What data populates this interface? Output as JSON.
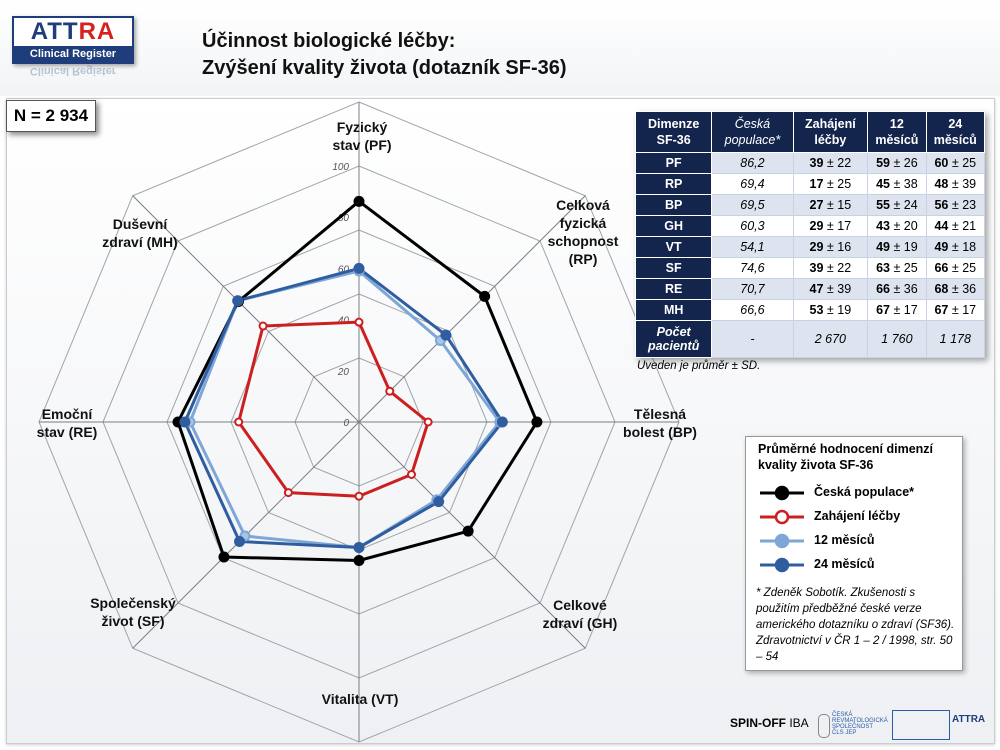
{
  "logo": {
    "part1": "ATT",
    "part2": "RA",
    "subtitle": "Clinical Register"
  },
  "title": {
    "line1": "Účinnost biologické léčby:",
    "line2": "Zvýšení kvality života (dotazník SF-36)"
  },
  "n_badge": "N = 2 934",
  "axis_labels": {
    "pf": [
      "Fyzický",
      "stav (PF)"
    ],
    "rp": [
      "Celková",
      "fyzická",
      "schopnost",
      "(RP)"
    ],
    "bp": [
      "Tělesná",
      "bolest (BP)"
    ],
    "gh": [
      "Celkové",
      "zdraví (GH)"
    ],
    "vt": [
      "Vitalita (VT)"
    ],
    "sf": [
      "Společenský",
      "život (SF)"
    ],
    "re": [
      "Emoční",
      "stav (RE)"
    ],
    "mh": [
      "Duševní",
      "zdraví (MH)"
    ]
  },
  "chart_data": {
    "type": "radar",
    "categories": [
      "PF",
      "RP",
      "BP",
      "GH",
      "VT",
      "SF",
      "RE",
      "MH"
    ],
    "scale_ticks": [
      "0",
      "20",
      "40",
      "60",
      "80",
      "100"
    ],
    "range": [
      0,
      100
    ],
    "series": [
      {
        "name": "Česká populace*",
        "color": "#000000",
        "values": [
          86.2,
          69.4,
          69.5,
          60.3,
          54.1,
          74.6,
          70.7,
          66.6
        ]
      },
      {
        "name": "Zahájení léčby",
        "color": "#cc1f1f",
        "values": [
          39,
          17,
          27,
          29,
          29,
          39,
          47,
          53
        ]
      },
      {
        "name": "12 měsíců",
        "color": "#7ea6d6",
        "values": [
          59,
          45,
          55,
          43,
          49,
          63,
          66,
          67
        ]
      },
      {
        "name": "24 měsíců",
        "color": "#2f5d9f",
        "values": [
          60,
          48,
          56,
          44,
          49,
          66,
          68,
          67
        ]
      }
    ]
  },
  "table": {
    "headers": [
      "Dimenze SF-36",
      "Česká populace*",
      "Zahájení léčby",
      "12 měsíců",
      "24 měsíců"
    ],
    "rows": [
      {
        "dim": "PF",
        "cz": "86,2",
        "base": [
          "39",
          "± 22"
        ],
        "m12": [
          "59",
          "± 26"
        ],
        "m24": [
          "60",
          "± 25"
        ]
      },
      {
        "dim": "RP",
        "cz": "69,4",
        "base": [
          "17",
          "± 25"
        ],
        "m12": [
          "45",
          "± 38"
        ],
        "m24": [
          "48",
          "± 39"
        ]
      },
      {
        "dim": "BP",
        "cz": "69,5",
        "base": [
          "27",
          "± 15"
        ],
        "m12": [
          "55",
          "± 24"
        ],
        "m24": [
          "56",
          "± 23"
        ]
      },
      {
        "dim": "GH",
        "cz": "60,3",
        "base": [
          "29",
          "± 17"
        ],
        "m12": [
          "43",
          "± 20"
        ],
        "m24": [
          "44",
          "± 21"
        ]
      },
      {
        "dim": "VT",
        "cz": "54,1",
        "base": [
          "29",
          "± 16"
        ],
        "m12": [
          "49",
          "± 19"
        ],
        "m24": [
          "49",
          "± 18"
        ]
      },
      {
        "dim": "SF",
        "cz": "74,6",
        "base": [
          "39",
          "± 22"
        ],
        "m12": [
          "63",
          "± 25"
        ],
        "m24": [
          "66",
          "± 25"
        ]
      },
      {
        "dim": "RE",
        "cz": "70,7",
        "base": [
          "47",
          "± 39"
        ],
        "m12": [
          "66",
          "± 36"
        ],
        "m24": [
          "68",
          "± 36"
        ]
      },
      {
        "dim": "MH",
        "cz": "66,6",
        "base": [
          "53",
          "± 19"
        ],
        "m12": [
          "67",
          "± 17"
        ],
        "m24": [
          "67",
          "± 17"
        ]
      }
    ],
    "patients": {
      "label": "Počet pacientů",
      "cz": "-",
      "base": "2 670",
      "m12": "1 760",
      "m24": "1 178"
    }
  },
  "table_note": "Uveden je průměr ± SD.",
  "legend": {
    "title": [
      "Průměrné hodnocení dimenzí",
      "kvality života SF-36"
    ],
    "items": [
      "Česká populace*",
      "Zahájení léčby",
      "12 měsíců",
      "24 měsíců"
    ],
    "footnote": "* Zdeněk Sobotík. Zkušenosti s použitím předběžné české verze amerického dotazníku o zdraví (SF36). Zdravotnictví v ČR 1 – 2 / 1998, str. 50 – 54"
  },
  "footer": {
    "spin": "SPIN-OFF",
    "iba": "IBA",
    "society": [
      "ČESKÁ",
      "REVMATOLOGICKÁ",
      "SPOLEČNOST",
      "ČLS JEP"
    ],
    "attra": "ATTRA"
  }
}
